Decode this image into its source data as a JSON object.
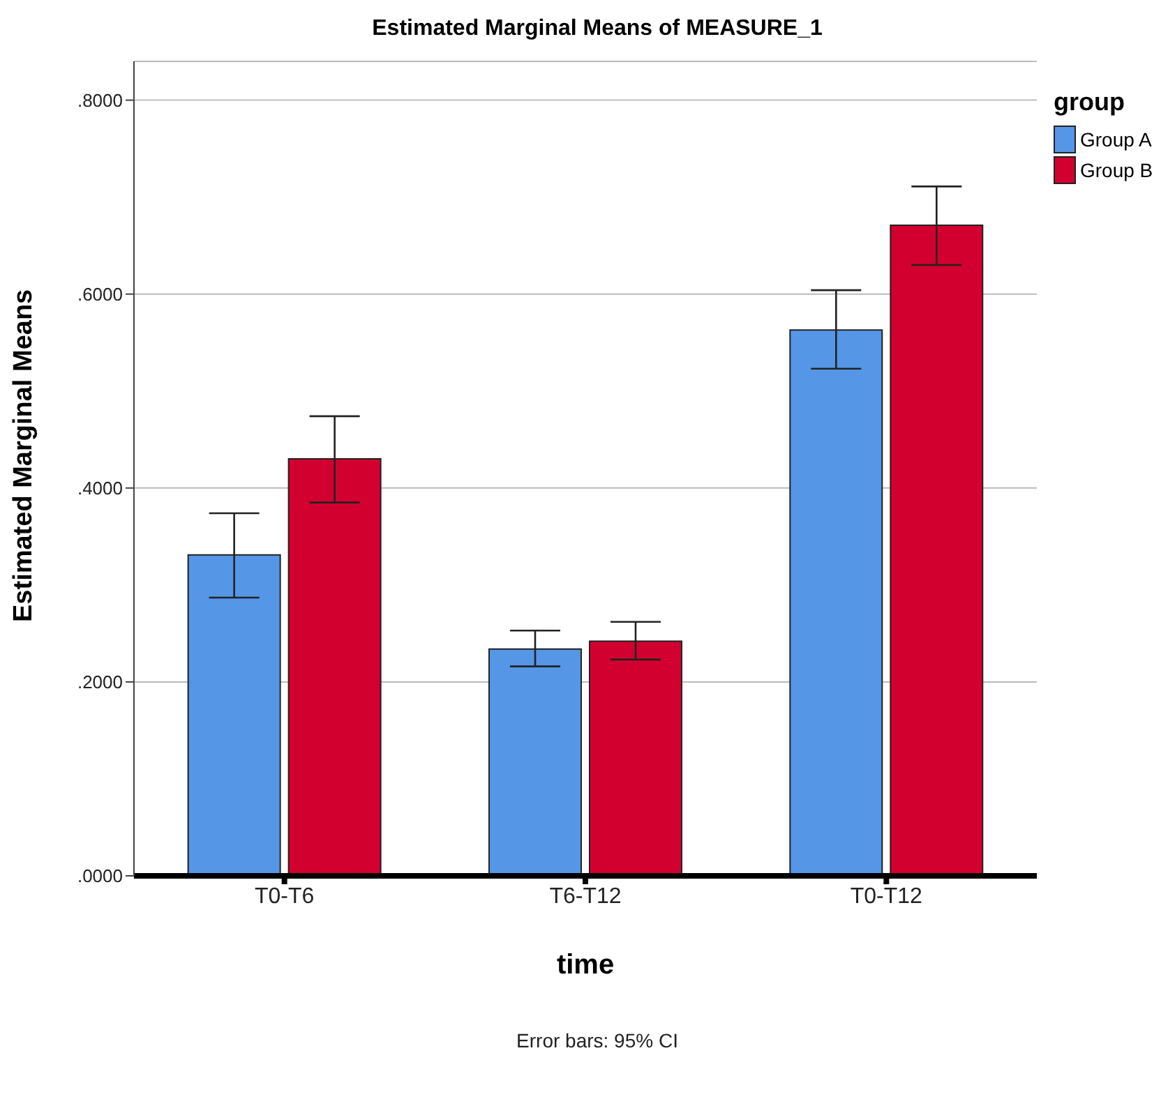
{
  "chart_data": {
    "type": "bar",
    "title": "Estimated Marginal Means of MEASURE_1",
    "xlabel": "time",
    "ylabel": "Estimated Marginal Means",
    "legend_title": "group",
    "categories": [
      "T0-T6",
      "T6-T12",
      "T0-T12"
    ],
    "series": [
      {
        "name": "Group A",
        "color": "#5596e6",
        "values": [
          0.331,
          0.234,
          0.563
        ],
        "errors": [
          [
            0.287,
            0.374
          ],
          [
            0.216,
            0.253
          ],
          [
            0.523,
            0.604
          ]
        ]
      },
      {
        "name": "Group B",
        "color": "#d2002f",
        "values": [
          0.43,
          0.242,
          0.671
        ],
        "errors": [
          [
            0.385,
            0.474
          ],
          [
            0.223,
            0.262
          ],
          [
            0.63,
            0.711
          ]
        ]
      }
    ],
    "ylim": [
      0,
      0.84
    ],
    "yticks": [
      {
        "value": 0,
        "label": ".0000"
      },
      {
        "value": 0.2,
        "label": ".2000"
      },
      {
        "value": 0.4,
        "label": ".4000"
      },
      {
        "value": 0.6,
        "label": ".6000"
      },
      {
        "value": 0.8,
        "label": ".8000"
      }
    ],
    "grid": "y",
    "legend": "top right",
    "annotations": [
      "Error bars: 95% CI"
    ]
  }
}
